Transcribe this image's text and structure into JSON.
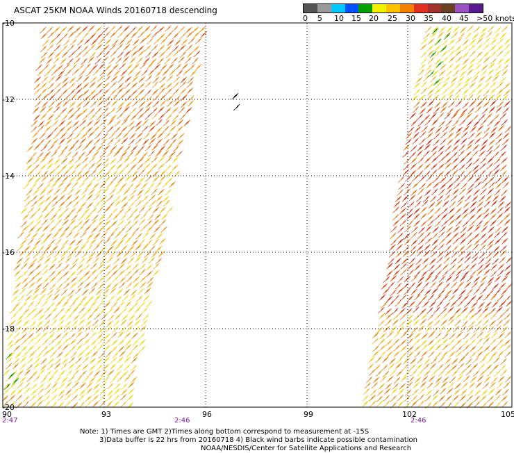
{
  "title": "ASCAT 25KM NOAA Winds 20160718 descending",
  "legend": {
    "labels": [
      "0",
      "5",
      "10",
      "15",
      "20",
      "25",
      "30",
      "35",
      "40",
      "45",
      ">50 knots"
    ],
    "colors": [
      "#555555",
      "#999999",
      "#00c8ff",
      "#0050ff",
      "#00a000",
      "#f0f000",
      "#ffc000",
      "#f08000",
      "#e03020",
      "#a0302a",
      "#6a4020",
      "#9a50c0",
      "#5a1890"
    ]
  },
  "map": {
    "lat_labels": [
      "-10",
      "-12",
      "-14",
      "-16",
      "-18",
      "-20"
    ],
    "lon_labels": [
      "90",
      "93",
      "96",
      "99",
      "102",
      "105"
    ],
    "time_labels": [
      "2:47",
      "2:46",
      "2:46"
    ]
  },
  "notes": {
    "line1": "Note: 1) Times are GMT 2)Times along bottom correspond to measurement at -15S",
    "line2": "3)Data buffer is 22 hrs from 20160718 4) Black wind barbs indicate possible contamination",
    "line3": "NOAA/NESDIS/Center for Satellite Applications and Research"
  }
}
